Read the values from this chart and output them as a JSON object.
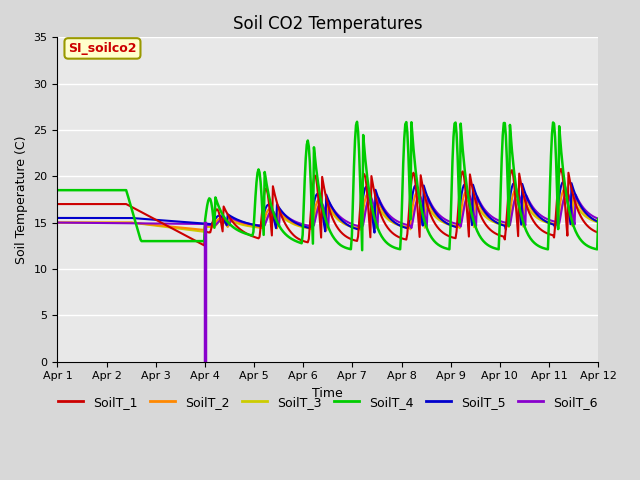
{
  "title": "Soil CO2 Temperatures",
  "xlabel": "Time",
  "ylabel": "Soil Temperature (C)",
  "ylim": [
    0,
    35
  ],
  "xlim": [
    0,
    11
  ],
  "xtick_labels": [
    "Apr 1",
    "Apr 2",
    "Apr 3",
    "Apr 4",
    "Apr 5",
    "Apr 6",
    "Apr 7",
    "Apr 8",
    "Apr 9",
    "Apr 10",
    "Apr 11",
    "Apr 12"
  ],
  "ytick_labels": [
    "0",
    "5",
    "10",
    "15",
    "20",
    "25",
    "30",
    "35"
  ],
  "legend_label": "SI_soilco2",
  "series_colors": {
    "SoilT_1": "#cc0000",
    "SoilT_2": "#ff8800",
    "SoilT_3": "#cccc00",
    "SoilT_4": "#00cc00",
    "SoilT_5": "#0000cc",
    "SoilT_6": "#8800cc"
  },
  "fig_facecolor": "#e8e8e8",
  "axes_facecolor": "#e0e0e0",
  "grid_color": "#ffffff",
  "title_fontsize": 12,
  "label_fontsize": 9,
  "tick_fontsize": 8,
  "legend_fontsize": 9,
  "vertical_line_x": 3.0,
  "vertical_line_color": "#8800cc"
}
